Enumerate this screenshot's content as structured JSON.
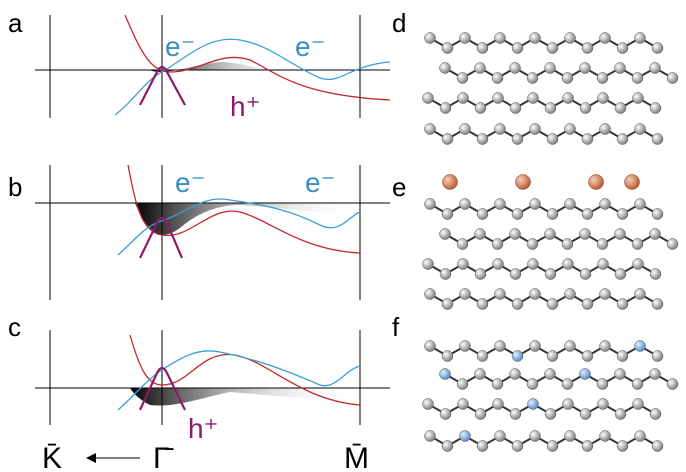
{
  "panels": [
    {
      "label": "a",
      "annotations": [
        "e⁻",
        "e⁻",
        "h⁺"
      ]
    },
    {
      "label": "b",
      "annotations": [
        "e⁻",
        "e⁻"
      ]
    },
    {
      "label": "c",
      "annotations": [
        "h⁺"
      ]
    },
    {
      "label": "d"
    },
    {
      "label": "e"
    },
    {
      "label": "f"
    }
  ],
  "axis_labels": [
    "K̄",
    "Γ̄",
    "M̄"
  ]
}
